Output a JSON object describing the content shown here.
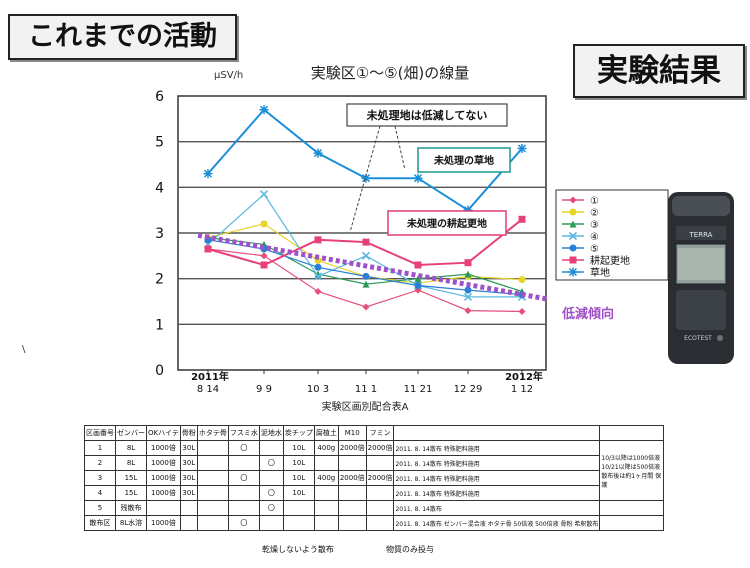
{
  "headers": {
    "left": "これまでの活動",
    "right": "実験結果"
  },
  "chart_data": {
    "type": "line",
    "title": "実験区①～⑤(畑)の線量",
    "ylabel": "µSV/h",
    "xlabel": "実験区画別配合表A",
    "ylim": [
      0,
      6
    ],
    "yticks": [
      "0",
      "1",
      "2",
      "3",
      "4",
      "5",
      "6"
    ],
    "grid": true,
    "legend_position": "right",
    "categories": [
      "8 14",
      "9 9",
      "10 3",
      "11 1",
      "11 21",
      "12 29",
      "1 12"
    ],
    "year_labels": [
      "2011年",
      "2012年"
    ],
    "series": [
      {
        "name": "①",
        "color": "#e5507a",
        "marker": "diamond",
        "values": [
          2.65,
          2.5,
          1.72,
          1.38,
          1.75,
          1.3,
          1.28
        ]
      },
      {
        "name": "②",
        "color": "#e8d428",
        "marker": "circle",
        "values": [
          2.9,
          3.2,
          2.4,
          2.05,
          1.9,
          2.05,
          1.98
        ]
      },
      {
        "name": "③",
        "color": "#2a9a55",
        "marker": "triangle",
        "values": [
          2.9,
          2.75,
          2.1,
          1.88,
          2.0,
          2.1,
          1.72
        ]
      },
      {
        "name": "④",
        "color": "#58b8e0",
        "marker": "cross",
        "values": [
          2.75,
          3.85,
          2.05,
          2.5,
          1.85,
          1.6,
          1.6
        ]
      },
      {
        "name": "⑤",
        "color": "#2b7fd6",
        "marker": "circle",
        "values": [
          2.85,
          2.65,
          2.25,
          2.05,
          1.85,
          1.75,
          1.65
        ]
      },
      {
        "name": "耕起更地",
        "color": "#e8407a",
        "marker": "square",
        "values": [
          2.65,
          2.3,
          2.85,
          2.8,
          2.3,
          2.35,
          3.3
        ]
      },
      {
        "name": "草地",
        "color": "#1a8fd8",
        "marker": "star",
        "values": [
          4.3,
          5.7,
          4.75,
          4.2,
          4.2,
          3.5,
          4.85
        ]
      }
    ],
    "trend": {
      "label": "低減傾向",
      "color": "#a050c8",
      "from": 2.95,
      "to": 1.55
    },
    "annotations": [
      "未処理地は低減してない",
      "未処理の草地",
      "未処理の耕起更地"
    ]
  },
  "table": {
    "headers": [
      "区画番号",
      "ゼンバー",
      "OKハイテ",
      "骨粉",
      "ホタテ骨",
      "フスミ水",
      "泥地水",
      "炭チップ",
      "腐植土",
      "M10",
      "フミン"
    ],
    "rows": [
      {
        "no": "1",
        "cells": [
          "8L",
          "1000倍",
          "30L",
          "",
          "〇",
          "",
          "10L",
          "400g",
          "2000倍",
          "2000倍"
        ],
        "date": "2011. 8. 14散布  特殊肥料施用"
      },
      {
        "no": "2",
        "cells": [
          "8L",
          "1000倍",
          "30L",
          "",
          "",
          "〇",
          "10L",
          "",
          "",
          ""
        ],
        "date": "2011. 8. 14散布  特殊肥料施用"
      },
      {
        "no": "3",
        "cells": [
          "15L",
          "1000倍",
          "30L",
          "",
          "〇",
          "",
          "10L",
          "400g",
          "2000倍",
          "2000倍"
        ],
        "date": "2011. 8. 14散布  特殊肥料施用"
      },
      {
        "no": "4",
        "cells": [
          "15L",
          "1000倍",
          "30L",
          "",
          "",
          "〇",
          "10L",
          "",
          "",
          ""
        ],
        "date": "2011. 8. 14散布  特殊肥料施用"
      },
      {
        "no": "5",
        "cells": [
          "残散布",
          "",
          "",
          "",
          "",
          "〇",
          "",
          "",
          "",
          ""
        ],
        "date": "2011. 8. 14散布"
      },
      {
        "no": "散布区",
        "cells": [
          "8L水溶",
          "1000倍",
          "",
          "",
          "〇",
          "",
          "",
          "",
          "",
          ""
        ],
        "date": "2011. 8. 14散布  ゼンバー混合液  ホタテ骨  50倍液  500倍液  骨粉  希釈散布"
      }
    ],
    "side_note": "10/3以降は1000倍液  10/21以降は500倍液  散布後は約1ヶ月間  保護",
    "footnotes": [
      "乾燥しないよう散布",
      "物質のみ投与"
    ]
  },
  "device": {
    "brand": "TERRA",
    "model": "ECOTEST"
  }
}
